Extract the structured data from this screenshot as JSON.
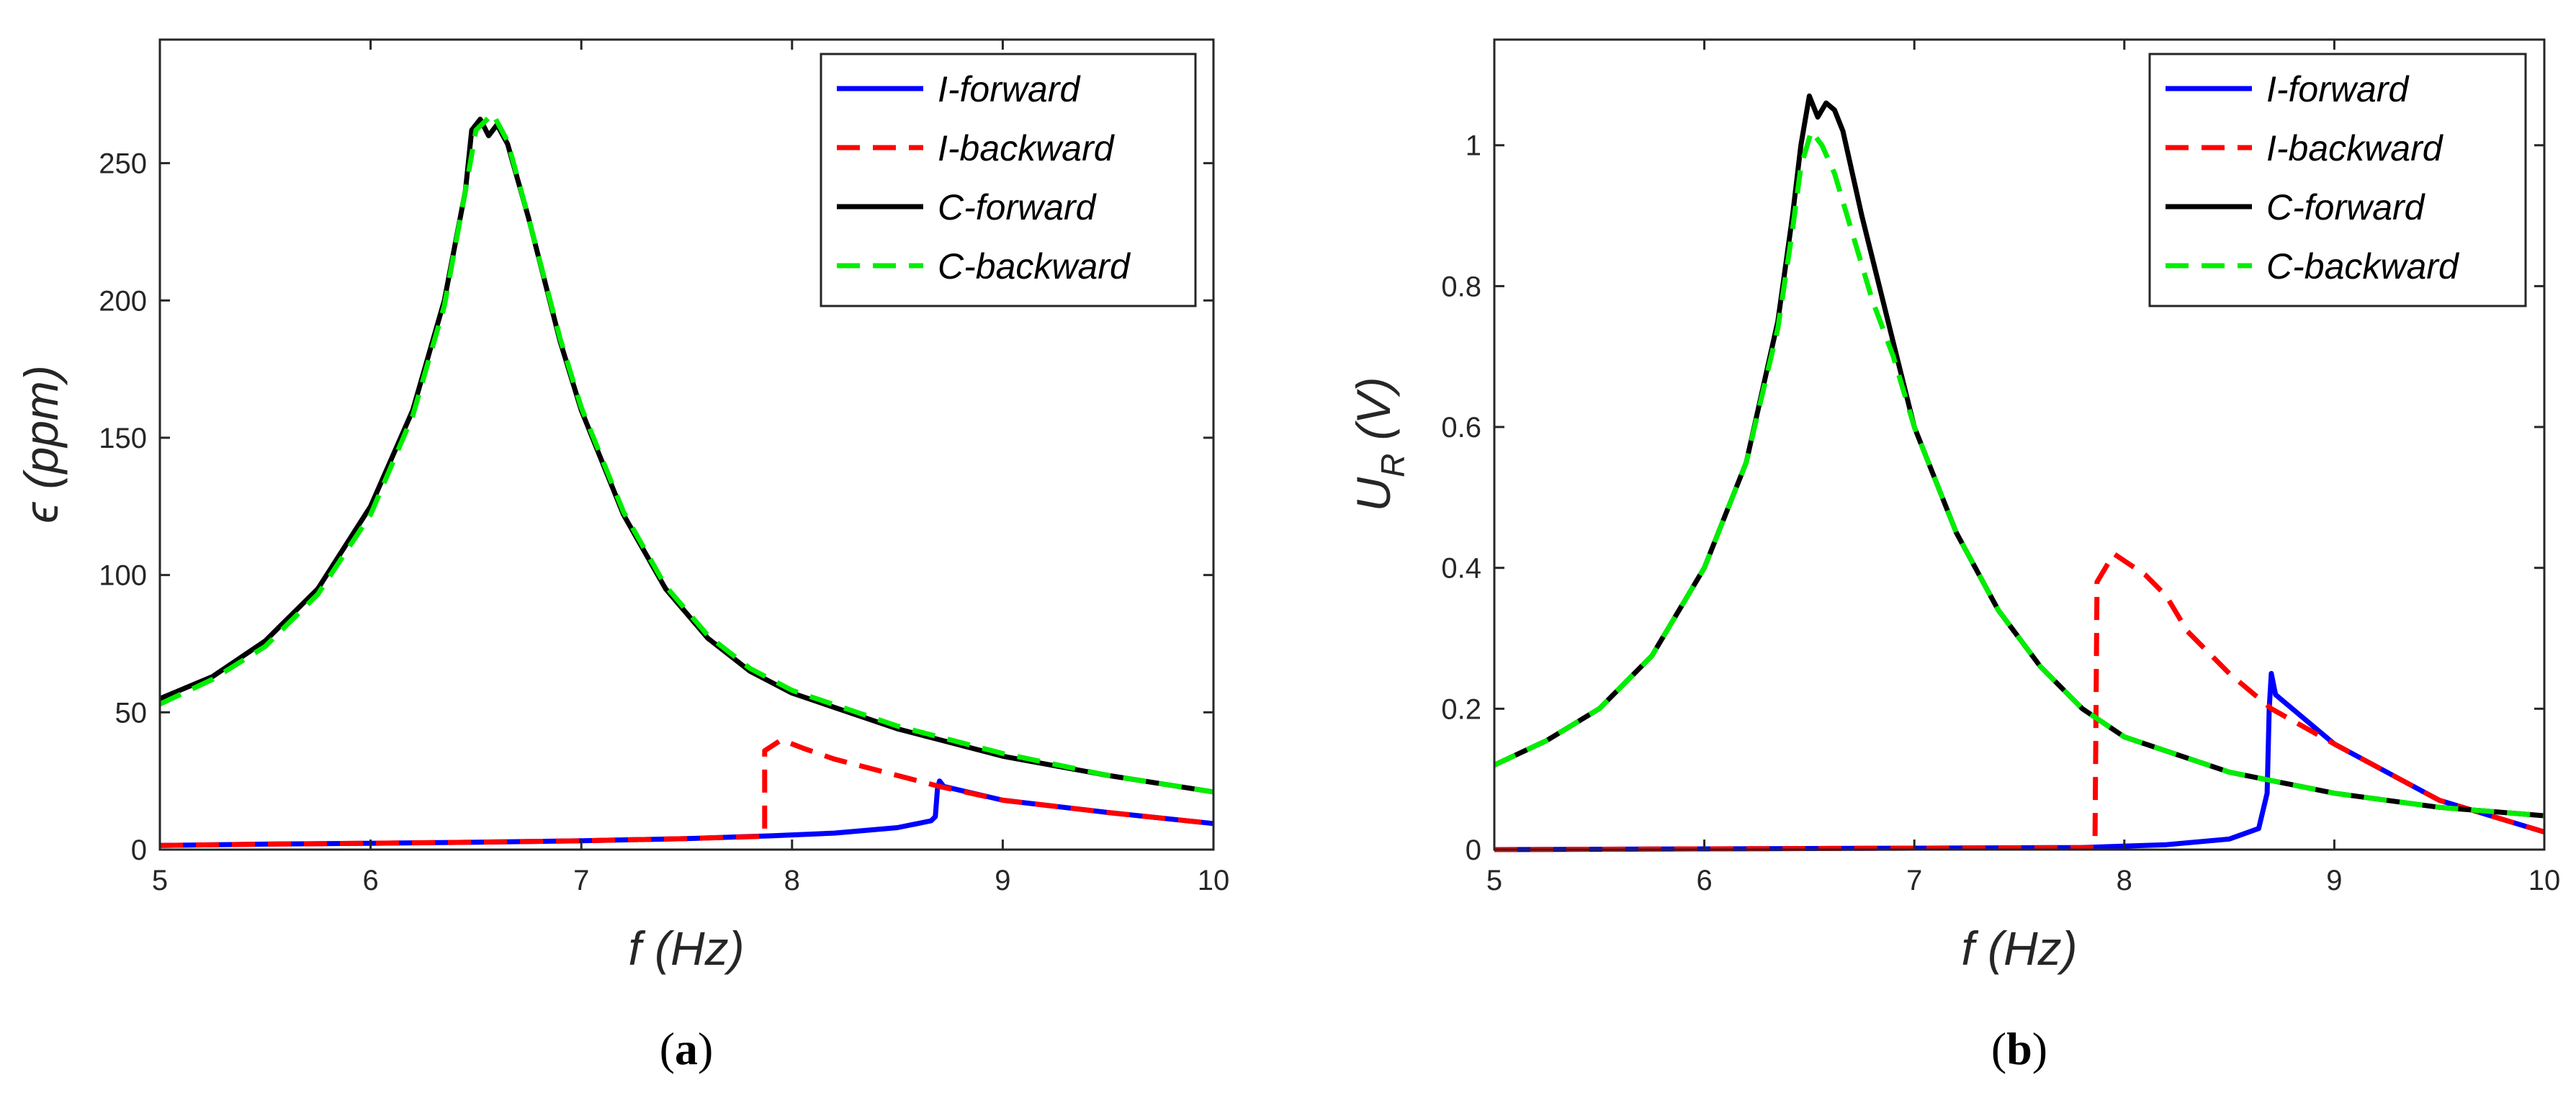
{
  "chart_data": [
    {
      "type": "line",
      "panel_label": "a",
      "xlabel": "f (Hz)",
      "ylabel": "ϵ (ppm)",
      "xlim": [
        5,
        10
      ],
      "ylim": [
        0,
        295
      ],
      "xticks": [
        5,
        6,
        7,
        8,
        9,
        10
      ],
      "yticks": [
        0,
        50,
        100,
        150,
        200,
        250
      ],
      "legend_position": "top-right",
      "series": [
        {
          "name": "I-forward",
          "color": "#0000ff",
          "dashed": false,
          "points": [
            [
              5,
              1.5
            ],
            [
              5.5,
              2
            ],
            [
              6,
              2.3
            ],
            [
              6.5,
              2.7
            ],
            [
              7,
              3.2
            ],
            [
              7.5,
              4
            ],
            [
              7.9,
              5
            ],
            [
              8.2,
              6
            ],
            [
              8.5,
              8
            ],
            [
              8.66,
              10.5
            ],
            [
              8.68,
              12
            ],
            [
              8.69,
              22
            ],
            [
              8.7,
              25
            ],
            [
              8.72,
              23
            ],
            [
              9,
              18
            ],
            [
              9.5,
              13.5
            ],
            [
              10,
              9.5
            ]
          ]
        },
        {
          "name": "I-backward",
          "color": "#ff0000",
          "dashed": true,
          "points": [
            [
              5,
              1.5
            ],
            [
              5.5,
              2
            ],
            [
              6,
              2.3
            ],
            [
              6.5,
              2.7
            ],
            [
              7,
              3.2
            ],
            [
              7.5,
              4
            ],
            [
              7.85,
              4.8
            ],
            [
              7.87,
              5
            ],
            [
              7.87,
              36
            ],
            [
              7.95,
              40
            ],
            [
              8.05,
              37
            ],
            [
              8.2,
              33
            ],
            [
              8.4,
              29
            ],
            [
              8.7,
              23
            ],
            [
              9,
              18
            ],
            [
              9.5,
              13.5
            ],
            [
              10,
              9.5
            ]
          ]
        },
        {
          "name": "C-forward",
          "color": "#000000",
          "dashed": false,
          "points": [
            [
              5,
              55
            ],
            [
              5.25,
              63
            ],
            [
              5.5,
              76
            ],
            [
              5.75,
              95
            ],
            [
              6,
              125
            ],
            [
              6.2,
              160
            ],
            [
              6.35,
              200
            ],
            [
              6.45,
              240
            ],
            [
              6.48,
              262
            ],
            [
              6.52,
              266
            ],
            [
              6.56,
              260
            ],
            [
              6.6,
              264
            ],
            [
              6.65,
              257
            ],
            [
              6.75,
              230
            ],
            [
              6.9,
              185
            ],
            [
              7,
              160
            ],
            [
              7.2,
              122
            ],
            [
              7.4,
              95
            ],
            [
              7.6,
              77
            ],
            [
              7.8,
              65
            ],
            [
              8,
              57
            ],
            [
              8.5,
              44
            ],
            [
              9,
              34
            ],
            [
              9.5,
              27
            ],
            [
              10,
              21
            ]
          ]
        },
        {
          "name": "C-backward",
          "color": "#00ee00",
          "dashed": true,
          "points": [
            [
              5,
              53
            ],
            [
              5.25,
              62
            ],
            [
              5.5,
              74
            ],
            [
              5.75,
              93
            ],
            [
              6,
              122
            ],
            [
              6.2,
              158
            ],
            [
              6.35,
              198
            ],
            [
              6.45,
              240
            ],
            [
              6.5,
              262
            ],
            [
              6.58,
              268
            ],
            [
              6.65,
              258
            ],
            [
              6.75,
              230
            ],
            [
              6.9,
              186
            ],
            [
              7,
              161
            ],
            [
              7.2,
              123
            ],
            [
              7.4,
              96
            ],
            [
              7.6,
              78
            ],
            [
              7.8,
              66
            ],
            [
              8,
              58
            ],
            [
              8.5,
              45
            ],
            [
              9,
              35
            ],
            [
              9.5,
              27
            ],
            [
              10,
              21
            ]
          ]
        }
      ]
    },
    {
      "type": "line",
      "panel_label": "b",
      "xlabel": "f (Hz)",
      "ylabel_main": "U",
      "ylabel_sub": "R",
      "ylabel_unit": " (V)",
      "xlim": [
        5,
        10
      ],
      "ylim": [
        0,
        1.15
      ],
      "xticks": [
        5,
        6,
        7,
        8,
        9,
        10
      ],
      "yticks": [
        0,
        0.2,
        0.4,
        0.6,
        0.8,
        1
      ],
      "legend_position": "top-right",
      "series": [
        {
          "name": "I-forward",
          "color": "#0000ff",
          "dashed": false,
          "points": [
            [
              5,
              0
            ],
            [
              6,
              0.001
            ],
            [
              7,
              0.002
            ],
            [
              7.8,
              0.003
            ],
            [
              8.2,
              0.007
            ],
            [
              8.5,
              0.015
            ],
            [
              8.64,
              0.03
            ],
            [
              8.68,
              0.08
            ],
            [
              8.69,
              0.2
            ],
            [
              8.7,
              0.25
            ],
            [
              8.72,
              0.22
            ],
            [
              9,
              0.15
            ],
            [
              9.5,
              0.07
            ],
            [
              10,
              0.025
            ]
          ]
        },
        {
          "name": "I-backward",
          "color": "#ff0000",
          "dashed": true,
          "points": [
            [
              5,
              0
            ],
            [
              6,
              0.001
            ],
            [
              7,
              0.002
            ],
            [
              7.86,
              0.003
            ],
            [
              7.87,
              0.38
            ],
            [
              7.95,
              0.42
            ],
            [
              8.1,
              0.39
            ],
            [
              8.2,
              0.36
            ],
            [
              8.3,
              0.31
            ],
            [
              8.5,
              0.25
            ],
            [
              8.7,
              0.2
            ],
            [
              9,
              0.15
            ],
            [
              9.5,
              0.07
            ],
            [
              10,
              0.025
            ]
          ]
        },
        {
          "name": "C-forward",
          "color": "#000000",
          "dashed": false,
          "points": [
            [
              5,
              0.12
            ],
            [
              5.25,
              0.155
            ],
            [
              5.5,
              0.2
            ],
            [
              5.75,
              0.275
            ],
            [
              6,
              0.4
            ],
            [
              6.2,
              0.55
            ],
            [
              6.35,
              0.75
            ],
            [
              6.42,
              0.9
            ],
            [
              6.46,
              1.0
            ],
            [
              6.5,
              1.07
            ],
            [
              6.54,
              1.04
            ],
            [
              6.58,
              1.06
            ],
            [
              6.62,
              1.05
            ],
            [
              6.66,
              1.02
            ],
            [
              6.75,
              0.9
            ],
            [
              6.9,
              0.72
            ],
            [
              7,
              0.6
            ],
            [
              7.2,
              0.45
            ],
            [
              7.4,
              0.34
            ],
            [
              7.6,
              0.26
            ],
            [
              7.8,
              0.2
            ],
            [
              8,
              0.16
            ],
            [
              8.5,
              0.11
            ],
            [
              9,
              0.08
            ],
            [
              9.5,
              0.06
            ],
            [
              10,
              0.048
            ]
          ]
        },
        {
          "name": "C-backward",
          "color": "#00ee00",
          "dashed": true,
          "points": [
            [
              5,
              0.12
            ],
            [
              5.25,
              0.155
            ],
            [
              5.5,
              0.2
            ],
            [
              5.75,
              0.275
            ],
            [
              6,
              0.4
            ],
            [
              6.2,
              0.55
            ],
            [
              6.35,
              0.74
            ],
            [
              6.42,
              0.88
            ],
            [
              6.46,
              0.97
            ],
            [
              6.51,
              1.02
            ],
            [
              6.56,
              1.0
            ],
            [
              6.62,
              0.96
            ],
            [
              6.7,
              0.88
            ],
            [
              6.8,
              0.78
            ],
            [
              6.9,
              0.7
            ],
            [
              7,
              0.6
            ],
            [
              7.2,
              0.45
            ],
            [
              7.4,
              0.34
            ],
            [
              7.6,
              0.26
            ],
            [
              7.8,
              0.2
            ],
            [
              8,
              0.16
            ],
            [
              8.5,
              0.11
            ],
            [
              9,
              0.08
            ],
            [
              9.5,
              0.06
            ],
            [
              10,
              0.048
            ]
          ]
        }
      ]
    }
  ]
}
